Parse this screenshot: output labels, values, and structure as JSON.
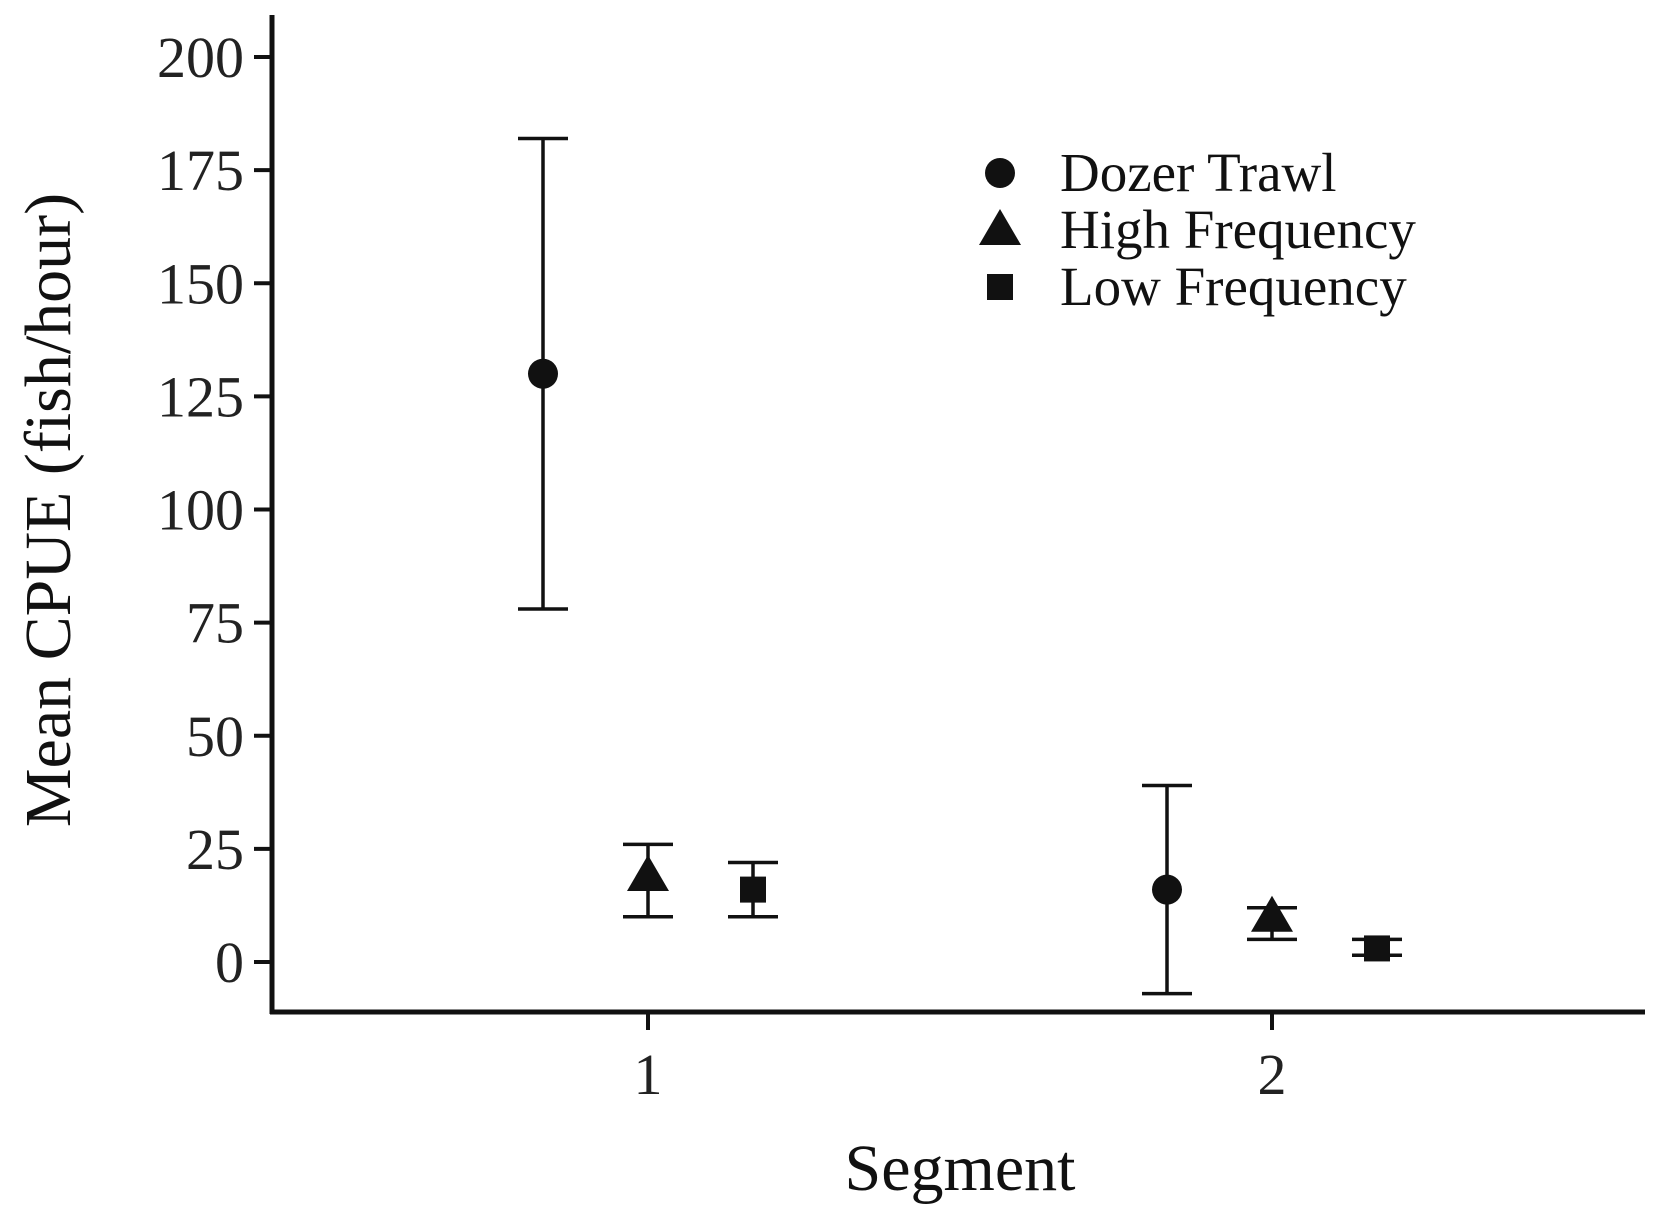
{
  "chart_data": {
    "type": "scatter",
    "xlabel": "Segment",
    "ylabel": "Mean CPUE (fish/hour)",
    "categories": [
      "1",
      "2"
    ],
    "ylim": [
      -10,
      210
    ],
    "yticks": [
      0,
      25,
      50,
      75,
      100,
      125,
      150,
      175,
      200
    ],
    "ytick_labels": [
      "0",
      "25",
      "50",
      "75",
      "100",
      "125",
      "150",
      "175",
      "200"
    ],
    "grid": false,
    "legend": "top-right",
    "series": [
      {
        "name": "Dozer Trawl",
        "marker": "circle",
        "values": [
          130,
          16
        ],
        "err_low": [
          78,
          -7
        ],
        "err_high": [
          182,
          39
        ]
      },
      {
        "name": "High Frequency",
        "marker": "triangle",
        "values": [
          19,
          10
        ],
        "err_low": [
          10,
          5
        ],
        "err_high": [
          26,
          12
        ]
      },
      {
        "name": "Low Frequency",
        "marker": "square",
        "values": [
          16,
          3
        ],
        "err_low": [
          10,
          1.5
        ],
        "err_high": [
          22,
          5
        ]
      }
    ],
    "colors": {
      "marker": "#111111",
      "axis": "#111111"
    }
  }
}
